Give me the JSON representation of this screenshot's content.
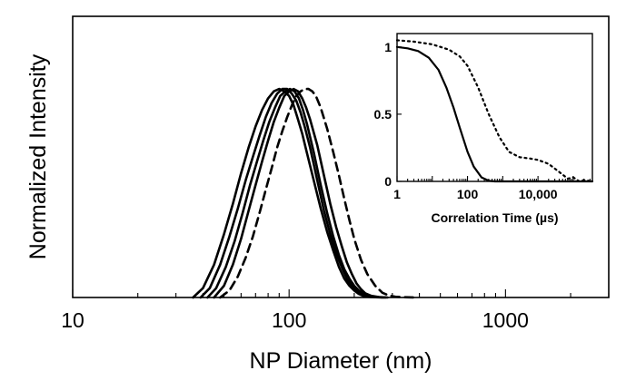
{
  "chart_data": [
    {
      "type": "line",
      "xlabel": "NP Diameter (nm)",
      "ylabel": "Normalized Intensity",
      "x_scale": "log",
      "xlim": [
        10,
        3000
      ],
      "ylim": [
        0,
        1.2
      ],
      "xticks": [
        10,
        100,
        1000
      ],
      "xtick_labels": [
        "10",
        "100",
        "1000"
      ],
      "grid": false,
      "series": [
        {
          "style": "solid",
          "x": [
            36,
            40,
            45,
            50,
            55,
            60,
            65,
            70,
            75,
            80,
            85,
            90,
            95,
            100,
            105,
            110,
            115,
            120,
            130,
            140,
            150,
            160,
            170,
            180,
            190,
            200,
            210,
            220,
            230,
            250,
            270
          ],
          "y": [
            0,
            0.04,
            0.14,
            0.27,
            0.4,
            0.53,
            0.64,
            0.73,
            0.8,
            0.85,
            0.88,
            0.89,
            0.88,
            0.86,
            0.82,
            0.76,
            0.7,
            0.63,
            0.5,
            0.38,
            0.28,
            0.2,
            0.13,
            0.08,
            0.05,
            0.03,
            0.015,
            0.007,
            0.003,
            0.001,
            0
          ]
        },
        {
          "style": "solid",
          "x": [
            39,
            43,
            48,
            53,
            58,
            63,
            68,
            73,
            78,
            83,
            88,
            93,
            98,
            103,
            108,
            113,
            118,
            125,
            135,
            145,
            155,
            165,
            175,
            185,
            195,
            205,
            215,
            230,
            250,
            275
          ],
          "y": [
            0,
            0.04,
            0.14,
            0.26,
            0.38,
            0.5,
            0.6,
            0.69,
            0.77,
            0.83,
            0.87,
            0.89,
            0.89,
            0.87,
            0.84,
            0.79,
            0.73,
            0.64,
            0.5,
            0.37,
            0.27,
            0.19,
            0.13,
            0.08,
            0.05,
            0.03,
            0.015,
            0.006,
            0.002,
            0
          ]
        },
        {
          "style": "solid",
          "x": [
            42,
            46,
            51,
            56,
            61,
            66,
            71,
            76,
            81,
            86,
            91,
            96,
            101,
            106,
            111,
            116,
            121,
            130,
            140,
            150,
            160,
            170,
            180,
            190,
            200,
            210,
            220,
            235,
            255,
            280
          ],
          "y": [
            0,
            0.04,
            0.13,
            0.24,
            0.36,
            0.48,
            0.58,
            0.67,
            0.75,
            0.81,
            0.86,
            0.88,
            0.89,
            0.88,
            0.85,
            0.8,
            0.74,
            0.62,
            0.48,
            0.36,
            0.26,
            0.18,
            0.12,
            0.08,
            0.05,
            0.03,
            0.015,
            0.006,
            0.002,
            0
          ]
        },
        {
          "style": "solid",
          "x": [
            45,
            50,
            55,
            60,
            65,
            70,
            75,
            80,
            85,
            90,
            95,
            100,
            105,
            110,
            115,
            120,
            125,
            135,
            145,
            155,
            165,
            175,
            185,
            195,
            205,
            215,
            225,
            240,
            260,
            285
          ],
          "y": [
            0,
            0.05,
            0.14,
            0.25,
            0.37,
            0.48,
            0.58,
            0.67,
            0.75,
            0.81,
            0.86,
            0.88,
            0.89,
            0.88,
            0.85,
            0.81,
            0.76,
            0.65,
            0.52,
            0.4,
            0.3,
            0.22,
            0.15,
            0.1,
            0.06,
            0.035,
            0.018,
            0.007,
            0.002,
            0
          ]
        },
        {
          "style": "dashed",
          "x": [
            48,
            53,
            58,
            63,
            68,
            73,
            78,
            83,
            88,
            93,
            98,
            103,
            108,
            113,
            118,
            123,
            128,
            133,
            140,
            150,
            160,
            170,
            180,
            190,
            200,
            215,
            230,
            250,
            270,
            290,
            310,
            340,
            380
          ],
          "y": [
            0,
            0.03,
            0.09,
            0.17,
            0.26,
            0.36,
            0.46,
            0.55,
            0.64,
            0.71,
            0.77,
            0.82,
            0.86,
            0.88,
            0.89,
            0.89,
            0.88,
            0.86,
            0.81,
            0.72,
            0.62,
            0.52,
            0.42,
            0.33,
            0.25,
            0.16,
            0.1,
            0.05,
            0.02,
            0.008,
            0.003,
            0.001,
            0
          ]
        }
      ]
    },
    {
      "type": "line",
      "xlabel": "Correlation Time (µs)",
      "ylabel": "",
      "x_scale": "log",
      "xlim": [
        1,
        350000
      ],
      "ylim": [
        0,
        1.1
      ],
      "xticks": [
        1,
        100,
        10000
      ],
      "xtick_labels": [
        "1",
        "100",
        "10,000"
      ],
      "yticks": [
        0,
        0.5,
        1
      ],
      "ytick_labels": [
        "0",
        "0.5",
        "1"
      ],
      "grid": false,
      "series": [
        {
          "style": "solid",
          "x": [
            1,
            2,
            4,
            8,
            15,
            25,
            40,
            60,
            100,
            150,
            250,
            400,
            600,
            1000,
            350000
          ],
          "y": [
            1.0,
            0.99,
            0.97,
            0.92,
            0.83,
            0.7,
            0.55,
            0.4,
            0.22,
            0.11,
            0.03,
            0.005,
            0,
            0,
            0
          ]
        },
        {
          "style": "dotted",
          "x": [
            1,
            3,
            10,
            30,
            60,
            100,
            200,
            400,
            800,
            1500,
            3000,
            6000,
            10000,
            20000,
            40000,
            70000,
            100000,
            150000,
            200000,
            350000
          ],
          "y": [
            1.05,
            1.04,
            1.02,
            0.98,
            0.93,
            0.86,
            0.7,
            0.5,
            0.33,
            0.22,
            0.18,
            0.17,
            0.16,
            0.13,
            0.07,
            0.02,
            0.03,
            0.0,
            0.01,
            0
          ]
        }
      ]
    }
  ]
}
